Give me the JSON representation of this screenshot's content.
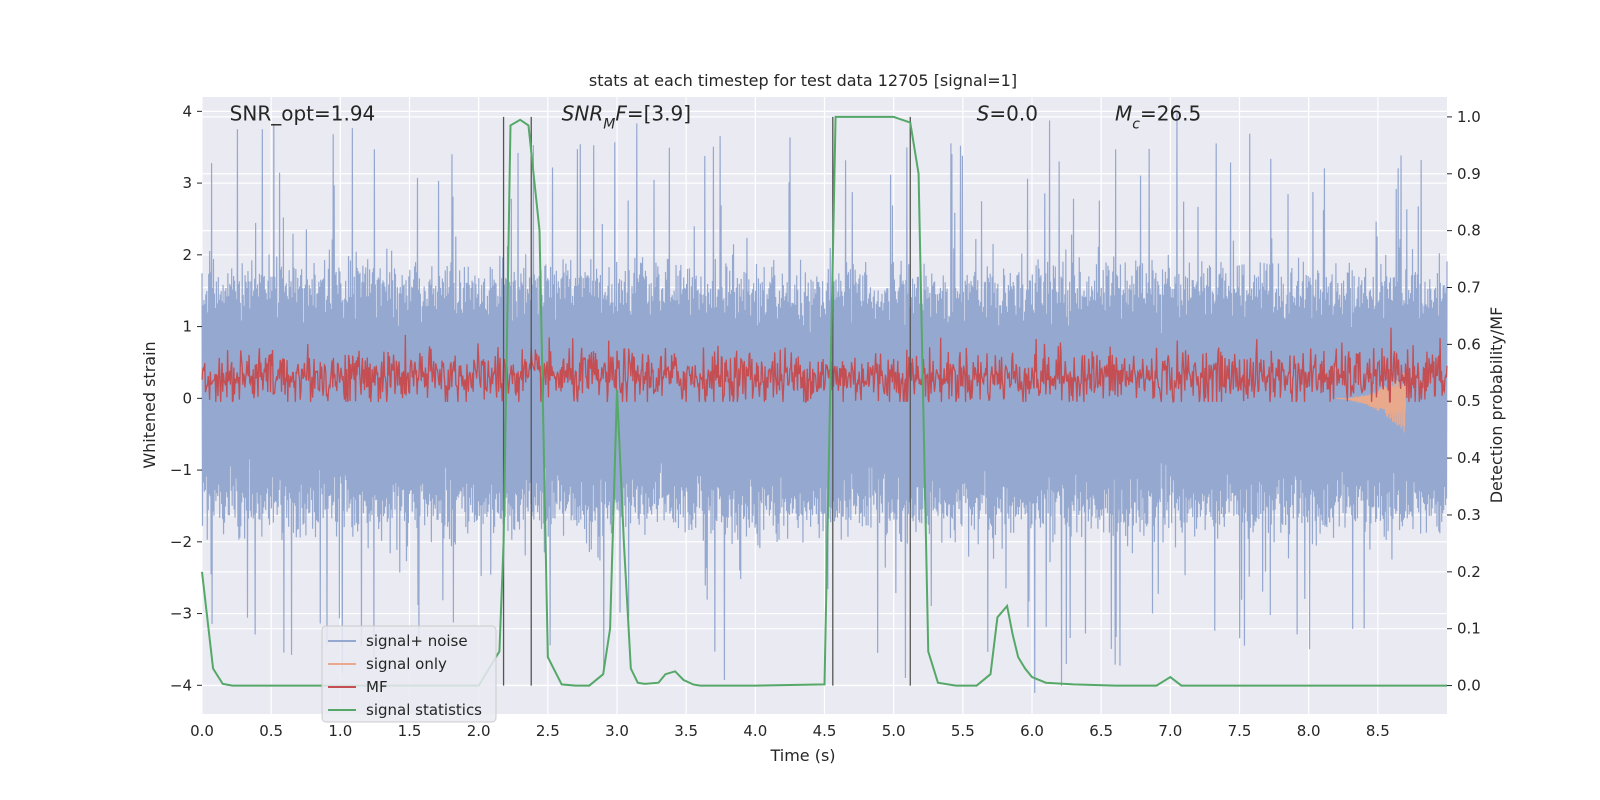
{
  "chart_data": {
    "type": "line",
    "title": "stats at each timestep for test data 12705 [signal=1]",
    "xlabel": "Time (s)",
    "ylabel_left": "Whitened strain",
    "ylabel_right": "Detection probability/MF",
    "xlim": [
      0,
      9
    ],
    "ylim_left": [
      -4.4,
      4.2
    ],
    "ylim_right": [
      -0.05,
      1.035
    ],
    "x_ticks": [
      0.0,
      0.5,
      1.0,
      1.5,
      2.0,
      2.5,
      3.0,
      3.5,
      4.0,
      4.5,
      5.0,
      5.5,
      6.0,
      6.5,
      7.0,
      7.5,
      8.0,
      8.5
    ],
    "x_tick_labels": [
      "0.0",
      "0.5",
      "1.0",
      "1.5",
      "2.0",
      "2.5",
      "3.0",
      "3.5",
      "4.0",
      "4.5",
      "5.0",
      "5.5",
      "6.0",
      "6.5",
      "7.0",
      "7.5",
      "8.0",
      "8.5"
    ],
    "y_left_ticks": [
      4,
      3,
      2,
      1,
      0,
      -1,
      -2,
      -3,
      -4
    ],
    "y_left_tick_labels": [
      "4",
      "3",
      "2",
      "1",
      "0",
      "−1",
      "−2",
      "−3",
      "−4"
    ],
    "y_right_ticks": [
      1.0,
      0.9,
      0.8,
      0.7,
      0.6,
      0.5,
      0.4,
      0.3,
      0.2,
      0.1,
      0.0
    ],
    "y_right_tick_labels": [
      "1.0",
      "0.9",
      "0.8",
      "0.7",
      "0.6",
      "0.5",
      "0.4",
      "0.3",
      "0.2",
      "0.1",
      "0.0"
    ],
    "grid": true,
    "legend_position": "bottom-left",
    "annotations": [
      {
        "id": "snr-opt",
        "text": "SNR_opt=1.94",
        "x": 0.2
      },
      {
        "id": "snr-mf",
        "text": "[3.9]",
        "x": 2.6
      },
      {
        "id": "s-value",
        "text": "=0.0",
        "x": 5.6
      },
      {
        "id": "mc-value",
        "text": "=26.5",
        "x": 6.6
      }
    ],
    "vertical_markers": [
      2.18,
      2.38,
      4.56,
      5.12
    ],
    "series": [
      {
        "name": "signal+ noise",
        "color": "#95a8cf",
        "kind": "noise",
        "axis": "left",
        "typical_amplitude": 1.5,
        "peak_amplitude": 3.8
      },
      {
        "name": "signal only",
        "color": "#e8a98d",
        "kind": "chirp",
        "axis": "left",
        "start": 8.2,
        "end": 8.7,
        "peak_amplitude": 0.45
      },
      {
        "name": "MF",
        "color": "#c44e52",
        "kind": "noise",
        "axis": "left",
        "center": 0.3,
        "amplitude": 0.35
      },
      {
        "name": "signal statistics",
        "color": "#55a868",
        "axis": "right",
        "x": [
          0.0,
          0.08,
          0.15,
          0.22,
          0.3,
          0.5,
          1.0,
          1.5,
          1.8,
          2.0,
          2.15,
          2.18,
          2.23,
          2.3,
          2.36,
          2.44,
          2.5,
          2.6,
          2.7,
          2.8,
          2.9,
          2.95,
          3.0,
          3.05,
          3.1,
          3.15,
          3.2,
          3.3,
          3.35,
          3.42,
          3.48,
          3.55,
          3.6,
          3.7,
          4.0,
          4.5,
          4.54,
          4.58,
          4.62,
          4.8,
          5.0,
          5.12,
          5.18,
          5.25,
          5.32,
          5.45,
          5.6,
          5.7,
          5.75,
          5.82,
          5.86,
          5.9,
          5.95,
          6.0,
          6.1,
          6.3,
          6.6,
          6.9,
          7.0,
          7.08,
          7.3,
          7.6,
          8.0,
          8.5,
          9.0
        ],
        "y": [
          0.2,
          0.03,
          0.003,
          0.0,
          0.0,
          0.0,
          0.0,
          0.0,
          0.0,
          0.0,
          0.06,
          0.25,
          0.985,
          0.995,
          0.985,
          0.8,
          0.05,
          0.002,
          0.0,
          0.0,
          0.02,
          0.1,
          0.52,
          0.25,
          0.03,
          0.005,
          0.003,
          0.005,
          0.02,
          0.025,
          0.01,
          0.002,
          0.0,
          0.0,
          0.0,
          0.002,
          0.5,
          1.0,
          1.0,
          1.0,
          1.0,
          0.99,
          0.9,
          0.06,
          0.005,
          0.0,
          0.0,
          0.02,
          0.12,
          0.14,
          0.09,
          0.05,
          0.03,
          0.015,
          0.005,
          0.002,
          0.0,
          0.0,
          0.015,
          0.0,
          0.0,
          0.0,
          0.0,
          0.0,
          0.0
        ]
      }
    ]
  }
}
